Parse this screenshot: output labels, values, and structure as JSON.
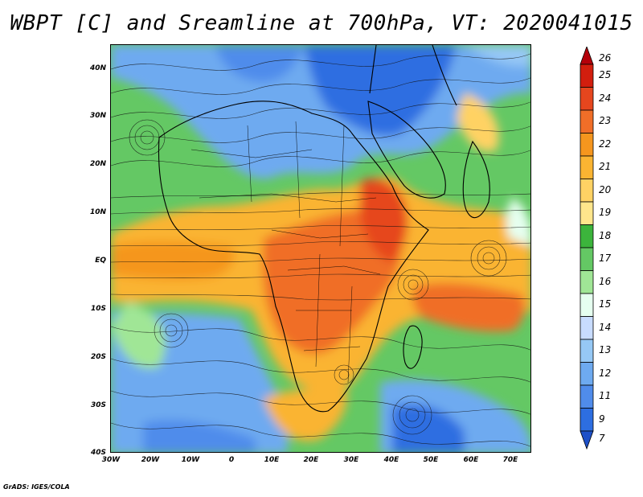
{
  "title": "WBPT [C] and Sreamline at 700hPa, VT: 2020041015",
  "map": {
    "y_axis_labels": [
      "40N",
      "30N",
      "20N",
      "10N",
      "EQ",
      "10S",
      "20S",
      "30S",
      "40S"
    ],
    "x_axis_labels": [
      "30W",
      "20W",
      "10W",
      "0",
      "10E",
      "20E",
      "30E",
      "40E",
      "50E",
      "60E",
      "70E"
    ],
    "lat_range": [
      -40,
      45
    ],
    "lon_range": [
      -30,
      77
    ]
  },
  "colorbar": {
    "levels": [
      "26",
      "25",
      "24",
      "23",
      "22",
      "21",
      "20",
      "19",
      "18",
      "17",
      "16",
      "15",
      "14",
      "13",
      "12",
      "11",
      "9",
      "7"
    ],
    "colors": [
      "#b4000a",
      "#d21e0e",
      "#e6461e",
      "#f06e28",
      "#f5961e",
      "#fab432",
      "#ffd264",
      "#ffe68c",
      "#3cb43c",
      "#64c864",
      "#a0e696",
      "#e6fff0",
      "#c8dcff",
      "#96c8f5",
      "#6eaaf0",
      "#508ceb",
      "#2d6ee1",
      "#1e50c8"
    ]
  },
  "footer": "GrADS: IGES/COLA"
}
